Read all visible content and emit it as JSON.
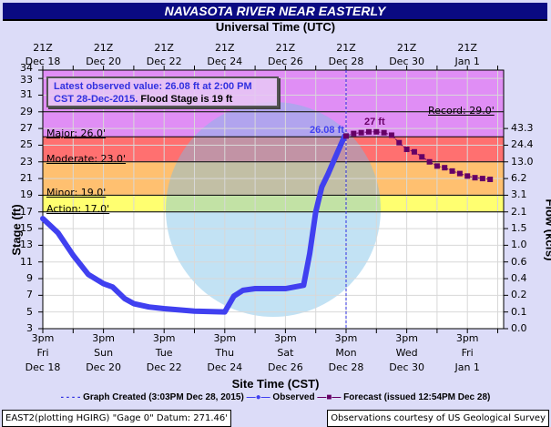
{
  "header": {
    "title": "NAVASOTA RIVER NEAR EASTERLY",
    "top_axis_title": "Universal Time (UTC)"
  },
  "top_ticks": [
    {
      "l1": "21Z",
      "l2": "Dec 18"
    },
    {
      "l1": "21Z",
      "l2": "Dec 20"
    },
    {
      "l1": "21Z",
      "l2": "Dec 22"
    },
    {
      "l1": "21Z",
      "l2": "Dec 24"
    },
    {
      "l1": "21Z",
      "l2": "Dec 26"
    },
    {
      "l1": "21Z",
      "l2": "Dec 28"
    },
    {
      "l1": "21Z",
      "l2": "Dec 30"
    },
    {
      "l1": "21Z",
      "l2": "Jan 1"
    }
  ],
  "bottom_ticks": [
    {
      "l1": "3pm",
      "l2": "Fri",
      "l3": "Dec 18"
    },
    {
      "l1": "3pm",
      "l2": "Sun",
      "l3": "Dec 20"
    },
    {
      "l1": "3pm",
      "l2": "Tue",
      "l3": "Dec 22"
    },
    {
      "l1": "3pm",
      "l2": "Thu",
      "l3": "Dec 24"
    },
    {
      "l1": "3pm",
      "l2": "Sat",
      "l3": "Dec 26"
    },
    {
      "l1": "3pm",
      "l2": "Mon",
      "l3": "Dec 28"
    },
    {
      "l1": "3pm",
      "l2": "Wed",
      "l3": "Dec 30"
    },
    {
      "l1": "3pm",
      "l2": "Fri",
      "l3": "Jan 1"
    }
  ],
  "info_box": {
    "line1": "Latest observed value: 26.08 ft at 2:00 PM",
    "line2_blue": "CST 28-Dec-2015.",
    "line2_black": "Flood Stage is 19 ft"
  },
  "flood_levels": {
    "record": "Record: 29.0'",
    "major": "Major: 26.0'",
    "moderate": "Moderate: 23.0'",
    "minor": "Minor: 19.0'",
    "action": "Action: 17.0'"
  },
  "annotations": {
    "observed_label": "26.08 ft",
    "forecast_peak_label": "27 ft"
  },
  "axes": {
    "stage_label": "Stage (ft)",
    "flow_label": "Flow (kcfs)",
    "site_time_label": "Site Time (CST)"
  },
  "legend": {
    "graph_created": "Graph Created (3:03PM Dec 28, 2015)",
    "observed": "Observed",
    "forecast": "Forecast (issued 12:54PM Dec 28)"
  },
  "footer": {
    "left": "EAST2(plotting HGIRG) \"Gage 0\" Datum: 271.46'",
    "right": "Observations courtesy of US Geological Survey"
  },
  "colors": {
    "title_bg": "#0a0a82",
    "record_band": "#e08ef5",
    "major_band": "#ff7070",
    "moderate_band": "#ffc070",
    "minor_band": "#ffff70",
    "observed": "#4040f0",
    "forecast": "#660066"
  },
  "chart_data": {
    "type": "line",
    "title": "NAVASOTA RIVER NEAR EASTERLY",
    "xlabel": "Site Time (CST)",
    "ylabel": "Stage (ft)",
    "y2label": "Flow (kcfs)",
    "ylim": [
      3,
      34
    ],
    "y_ticks": [
      3,
      5,
      7,
      9,
      11,
      13,
      15,
      17,
      19,
      21,
      23,
      25,
      27,
      29,
      31,
      33,
      34
    ],
    "flow_ticks": [
      {
        "stage": 27,
        "flow": "43.3"
      },
      {
        "stage": 25,
        "flow": "24.4"
      },
      {
        "stage": 23,
        "flow": "13.0"
      },
      {
        "stage": 21,
        "flow": "6.2"
      },
      {
        "stage": 19,
        "flow": "3.1"
      },
      {
        "stage": 17,
        "flow": "2.1"
      },
      {
        "stage": 15,
        "flow": "1.5"
      },
      {
        "stage": 13,
        "flow": "1.0"
      },
      {
        "stage": 11,
        "flow": "0.6"
      },
      {
        "stage": 9,
        "flow": "0.4"
      },
      {
        "stage": 7,
        "flow": "0.2"
      },
      {
        "stage": 5,
        "flow": "0.1"
      },
      {
        "stage": 3,
        "flow": "0.0"
      }
    ],
    "x_ticks": [
      "3pm Fri Dec 18",
      "3pm Sun Dec 20",
      "3pm Tue Dec 22",
      "3pm Thu Dec 24",
      "3pm Sat Dec 26",
      "3pm Mon Dec 28",
      "3pm Wed Dec 30",
      "3pm Fri Jan 1"
    ],
    "grid": true,
    "legend_position": "bottom",
    "thresholds": {
      "action": 17.0,
      "minor": 19.0,
      "moderate": 23.0,
      "major": 26.0,
      "record": 29.0
    },
    "series": [
      {
        "name": "Observed",
        "x_days_from_dec18_3pm": [
          0,
          0.5,
          1,
          1.5,
          2,
          2.3,
          2.7,
          3,
          3.5,
          4,
          5,
          6,
          6.3,
          6.6,
          7,
          8,
          8.6,
          8.8,
          9,
          9.2,
          9.4,
          9.7,
          9.95
        ],
        "values": [
          16.2,
          14.5,
          11.8,
          9.5,
          8.4,
          8.0,
          6.6,
          6.0,
          5.6,
          5.4,
          5.1,
          5.0,
          6.9,
          7.6,
          7.8,
          7.8,
          8.2,
          12,
          17,
          20,
          21.5,
          24,
          26.08
        ]
      },
      {
        "name": "Forecast",
        "x_days_from_dec18_3pm": [
          10,
          10.25,
          10.5,
          10.75,
          11,
          11.25,
          11.5,
          11.75,
          12,
          12.25,
          12.5,
          12.75,
          13,
          13.25,
          13.5,
          13.75,
          14,
          14.25,
          14.5,
          14.75
        ],
        "values": [
          26.1,
          26.4,
          26.5,
          26.6,
          26.6,
          26.5,
          26.2,
          25.3,
          24.5,
          24.2,
          23.6,
          23.0,
          22.5,
          22.3,
          21.9,
          21.6,
          21.3,
          21.1,
          21.0,
          20.9
        ]
      }
    ],
    "graph_created_x_days": 10.0
  }
}
